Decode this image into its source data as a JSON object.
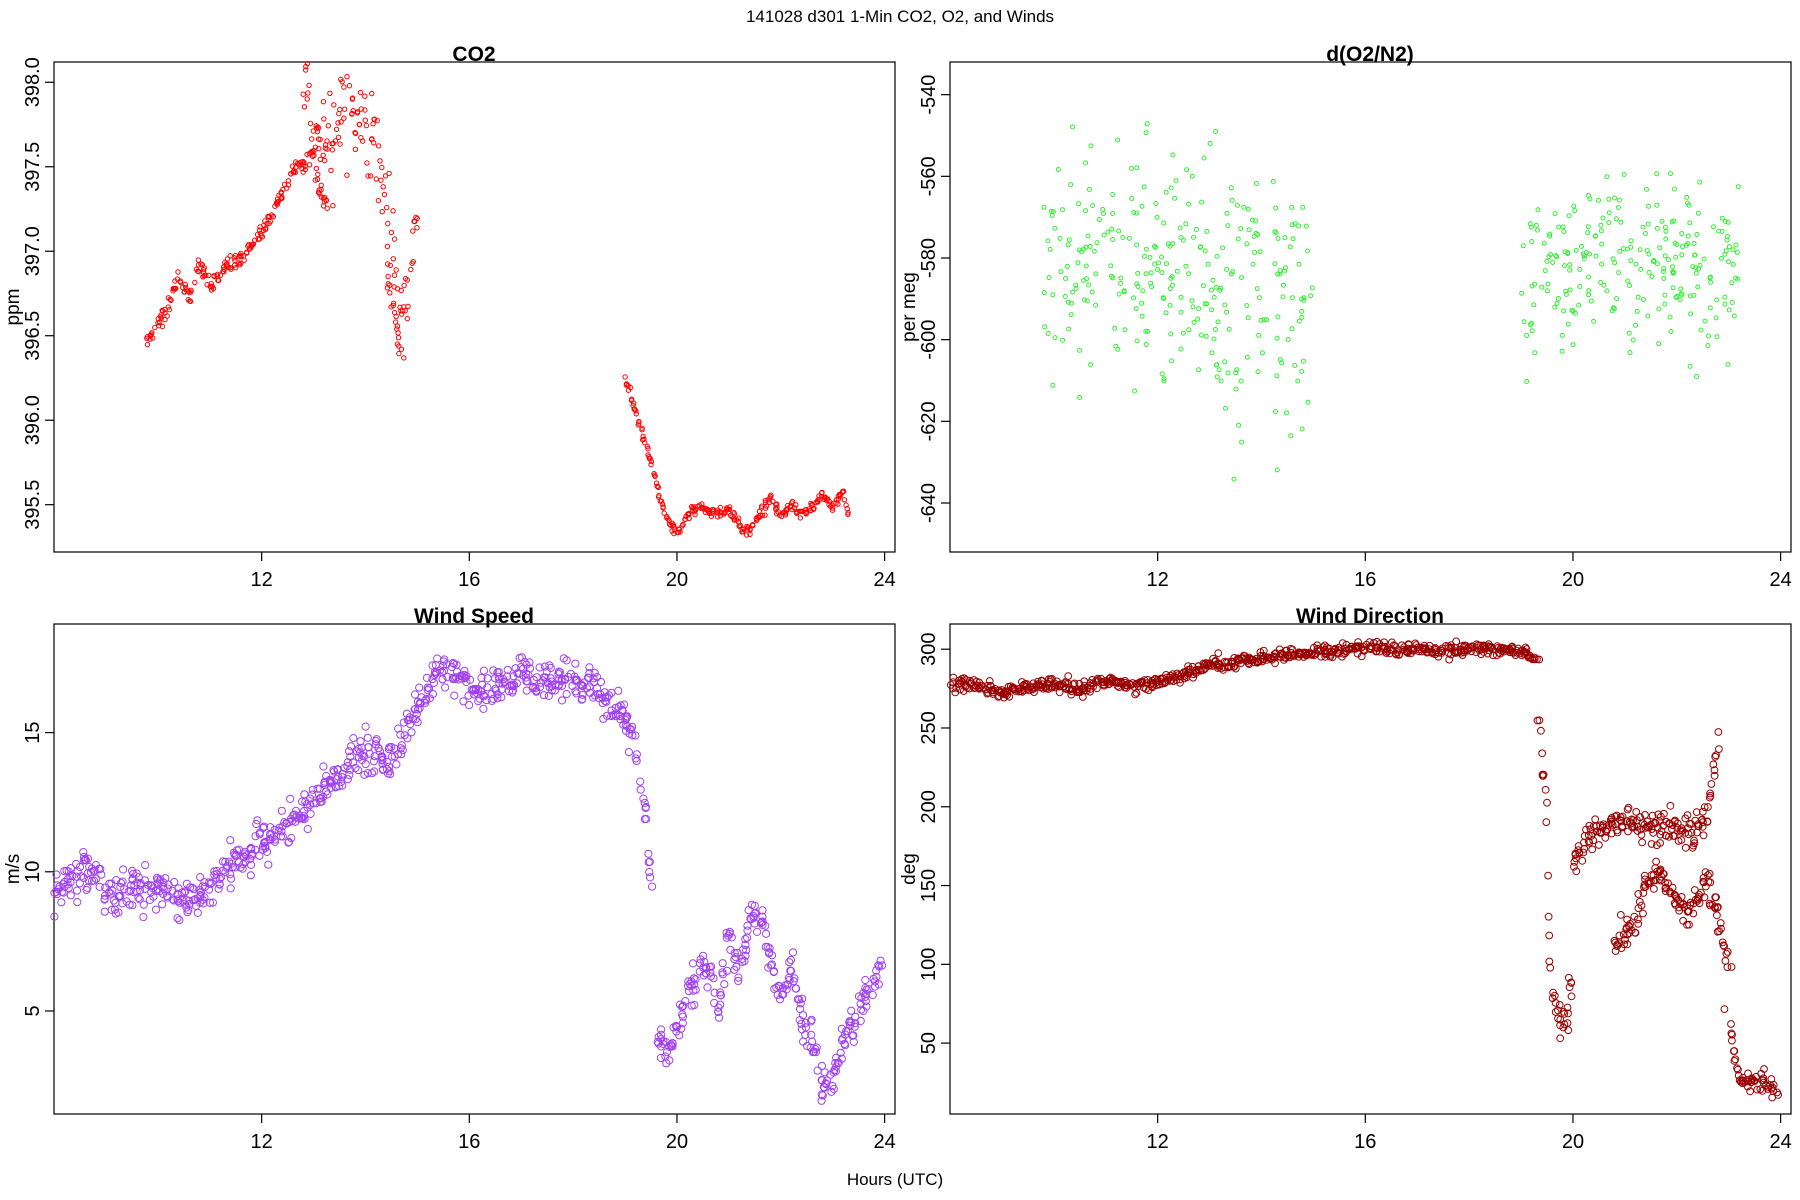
{
  "figure": {
    "title": "141028   d301   1-Min CO2, O2, and Winds",
    "xlabel": "Hours (UTC)"
  },
  "chart_data": [
    {
      "type": "scatter",
      "title": "CO2",
      "ylabel": "ppm",
      "xlim": [
        8.0,
        24.2
      ],
      "ylim": [
        395.22,
        398.12
      ],
      "xticks": [
        12,
        16,
        20,
        24
      ],
      "yticks": [
        395.5,
        396.0,
        396.5,
        397.0,
        397.5,
        398.0
      ],
      "ytick_labels": [
        "395.5",
        "396.0",
        "396.5",
        "397.0",
        "397.5",
        "398.0"
      ],
      "color": "#ff0000",
      "marker_size": 2.2,
      "segments": [
        {
          "x": [
            9.8,
            10.0,
            10.2,
            10.4,
            10.6,
            10.8,
            11.0,
            11.2,
            11.4,
            11.6,
            11.8,
            12.0,
            12.2,
            12.4,
            12.6,
            12.8,
            13.0,
            13.1,
            13.3
          ],
          "y": [
            396.46,
            396.58,
            396.67,
            396.85,
            396.72,
            396.93,
            396.78,
            396.87,
            396.92,
            396.96,
            397.03,
            397.12,
            397.22,
            397.35,
            397.48,
            397.52,
            397.6,
            397.35,
            397.28
          ],
          "noise": 0.025,
          "spread": 0.04
        },
        {
          "x": [
            12.8,
            12.9,
            13.0,
            13.7,
            13.8,
            14.0,
            14.3,
            14.5,
            14.7,
            15.0
          ],
          "y": [
            397.95,
            398.03,
            397.6,
            397.88,
            397.75,
            397.82,
            397.45,
            397.1,
            396.5,
            397.2
          ],
          "noise": 0.12,
          "spread": 0.03
        },
        {
          "x": [
            14.4,
            14.5,
            14.6,
            14.7
          ],
          "y": [
            396.9,
            396.75,
            396.55,
            396.4
          ],
          "noise": 0.08,
          "spread": 0.03
        },
        {
          "x": [
            19.0,
            19.1,
            19.3,
            19.5,
            19.7,
            19.9,
            20.0,
            20.2,
            20.4,
            20.6,
            20.8,
            21.0,
            21.2,
            21.4,
            21.6,
            21.8,
            22.0,
            22.2,
            22.4,
            22.6,
            22.8,
            23.0,
            23.2,
            23.3
          ],
          "y": [
            396.25,
            396.15,
            395.95,
            395.75,
            395.5,
            395.36,
            395.34,
            395.42,
            395.5,
            395.46,
            395.45,
            395.48,
            395.38,
            395.34,
            395.45,
            395.55,
            395.42,
            395.5,
            395.45,
            395.48,
            395.55,
            395.48,
            395.58,
            395.44
          ],
          "noise": 0.015,
          "spread": 0.025
        }
      ]
    },
    {
      "type": "scatter",
      "title": "d(O2/N2)",
      "ylabel": "per meg",
      "xlim": [
        8.0,
        24.2
      ],
      "ylim": [
        -652,
        -532
      ],
      "xticks": [
        12,
        16,
        20,
        24
      ],
      "yticks": [
        -640,
        -620,
        -600,
        -580,
        -560,
        -540
      ],
      "ytick_labels": [
        "-640",
        "-620",
        "-600",
        "-580",
        "-560",
        "-540"
      ],
      "color": "#33ee33",
      "marker_size": 2.0,
      "segments": [
        {
          "x": [
            9.8,
            10.5,
            11.2,
            11.9,
            12.6,
            13.3,
            14.0,
            14.7,
            15.0
          ],
          "y": [
            -582,
            -582,
            -581,
            -583,
            -585,
            -588,
            -590,
            -590,
            -590
          ],
          "noise": 16,
          "spread": 1,
          "count": 300
        },
        {
          "x": [
            19.0,
            19.7,
            20.4,
            21.1,
            21.8,
            22.5,
            23.2
          ],
          "y": [
            -588,
            -583,
            -582,
            -582,
            -582,
            -583,
            -584
          ],
          "noise": 10,
          "spread": 1,
          "count": 240
        }
      ]
    },
    {
      "type": "scatter",
      "title": "Wind Speed",
      "ylabel": "m/s",
      "xlim": [
        8.0,
        24.2
      ],
      "ylim": [
        1.3,
        18.9
      ],
      "xticks": [
        12,
        16,
        20,
        24
      ],
      "yticks": [
        5,
        10,
        15
      ],
      "ytick_labels": [
        "5",
        "10",
        "15"
      ],
      "color": "#a040f0",
      "marker_size": 3.6,
      "segments": [
        {
          "x": [
            8.0,
            8.3,
            8.5,
            8.8,
            9.0,
            9.3,
            9.6,
            10.0,
            10.4,
            10.8,
            11.0,
            11.3,
            11.6,
            12.0,
            12.5,
            13.0,
            13.5,
            14.0,
            14.5,
            15.0,
            15.5,
            16.0,
            16.5,
            17.0,
            17.5,
            18.0,
            18.5,
            19.0,
            19.2,
            19.4,
            19.5
          ],
          "y": [
            9.3,
            9.6,
            10.0,
            9.9,
            9.2,
            9.3,
            9.4,
            9.4,
            9.1,
            9.0,
            9.3,
            10.1,
            10.5,
            11.0,
            11.5,
            12.5,
            13.5,
            14.3,
            14.0,
            16.0,
            17.5,
            16.5,
            16.5,
            17.0,
            16.8,
            17.0,
            16.5,
            15.5,
            14.5,
            12.0,
            9.5
          ],
          "noise": 0.35,
          "spread": 0.05
        },
        {
          "x": [
            19.6,
            19.8,
            20.0,
            20.2,
            20.4,
            20.6,
            20.8,
            21.0,
            21.2,
            21.4,
            21.6,
            21.8,
            22.0,
            22.2,
            22.4,
            22.6,
            22.8,
            23.0,
            23.2,
            23.4,
            23.6,
            23.8,
            23.9
          ],
          "y": [
            4.2,
            3.7,
            4.2,
            5.7,
            6.3,
            6.6,
            5.0,
            7.7,
            6.5,
            8.2,
            8.5,
            7.0,
            5.5,
            6.5,
            5.0,
            4.0,
            2.2,
            2.5,
            4.0,
            4.7,
            5.5,
            6.0,
            6.5
          ],
          "noise": 0.35,
          "spread": 0.05
        }
      ]
    },
    {
      "type": "scatter",
      "title": "Wind Direction",
      "ylabel": "deg",
      "xlim": [
        8.0,
        24.2
      ],
      "ylim": [
        5,
        316
      ],
      "xticks": [
        12,
        16,
        20,
        24
      ],
      "yticks": [
        50,
        100,
        150,
        200,
        250,
        300
      ],
      "ytick_labels": [
        "50",
        "100",
        "150",
        "200",
        "250",
        "300"
      ],
      "color": "#990000",
      "marker_size": 3.4,
      "segments": [
        {
          "x": [
            8.0,
            8.5,
            9.0,
            9.5,
            10.0,
            10.5,
            11.0,
            11.5,
            12.0,
            12.5,
            13.0,
            13.5,
            14.0,
            14.5,
            15.0,
            15.5,
            16.0,
            16.5,
            17.0,
            17.5,
            18.0,
            18.5,
            19.0,
            19.3
          ],
          "y": [
            279,
            277,
            272,
            276,
            278,
            274,
            280,
            277,
            279,
            284,
            290,
            291,
            294,
            297,
            298,
            299,
            302,
            300,
            300,
            299,
            301,
            300,
            299,
            294
          ],
          "noise": 2.0,
          "spread": 0.03
        },
        {
          "x": [
            19.35,
            19.4,
            19.45,
            19.5,
            19.55,
            19.6,
            19.7,
            19.8,
            19.9,
            20.0
          ],
          "y": [
            252,
            230,
            210,
            190,
            100,
            80,
            70,
            65,
            75,
            95
          ],
          "noise": 6,
          "spread": 0.02
        },
        {
          "x": [
            20.0,
            20.3,
            20.6,
            20.9,
            21.2,
            21.5,
            21.7,
            22.0,
            22.3,
            22.6,
            22.7,
            22.8
          ],
          "y": [
            165,
            178,
            185,
            190,
            190,
            188,
            190,
            185,
            180,
            195,
            220,
            240
          ],
          "noise": 5,
          "spread": 0.02
        },
        {
          "x": [
            20.8,
            21.0,
            21.2,
            21.4,
            21.6,
            21.8,
            22.0,
            22.2,
            22.4,
            22.6,
            22.8,
            23.0
          ],
          "y": [
            110,
            118,
            125,
            148,
            157,
            150,
            140,
            132,
            145,
            150,
            130,
            100
          ],
          "noise": 5,
          "spread": 0.03
        },
        {
          "x": [
            23.0,
            23.1,
            23.2,
            23.3,
            23.5,
            23.7,
            23.9
          ],
          "y": [
            75,
            45,
            30,
            28,
            25,
            26,
            20
          ],
          "noise": 3,
          "spread": 0.03
        }
      ]
    }
  ]
}
